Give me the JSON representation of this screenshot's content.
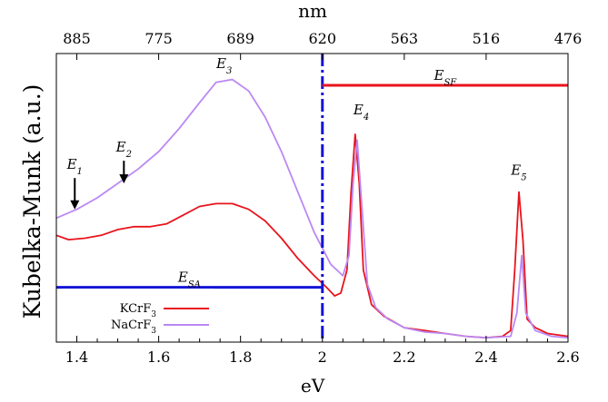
{
  "chart_data": {
    "type": "line",
    "xlabel": "eV",
    "ylabel": "Kubelka-Munk (a.u.)",
    "top_axis_label": "nm",
    "xlim": [
      1.35,
      2.6
    ],
    "ylim": [
      0,
      1
    ],
    "x_ticks": [
      "1.4",
      "1.6",
      "1.8",
      "2",
      "2.2",
      "2.4",
      "2.6"
    ],
    "top_ticks": [
      {
        "x": 1.4,
        "label": "885"
      },
      {
        "x": 1.6,
        "label": "775"
      },
      {
        "x": 1.8,
        "label": "689"
      },
      {
        "x": 2.0,
        "label": "620"
      },
      {
        "x": 2.2,
        "label": "563"
      },
      {
        "x": 2.4,
        "label": "516"
      },
      {
        "x": 2.6,
        "label": "476"
      }
    ],
    "series": [
      {
        "name": "KCrF",
        "name_sub": "3",
        "color": "#e8141c",
        "points": [
          [
            1.35,
            0.37
          ],
          [
            1.38,
            0.355
          ],
          [
            1.42,
            0.36
          ],
          [
            1.46,
            0.37
          ],
          [
            1.5,
            0.39
          ],
          [
            1.54,
            0.4
          ],
          [
            1.58,
            0.4
          ],
          [
            1.62,
            0.41
          ],
          [
            1.66,
            0.44
          ],
          [
            1.7,
            0.47
          ],
          [
            1.74,
            0.48
          ],
          [
            1.78,
            0.48
          ],
          [
            1.82,
            0.46
          ],
          [
            1.86,
            0.42
          ],
          [
            1.9,
            0.36
          ],
          [
            1.94,
            0.29
          ],
          [
            1.98,
            0.23
          ],
          [
            2.01,
            0.19
          ],
          [
            2.03,
            0.16
          ],
          [
            2.045,
            0.17
          ],
          [
            2.06,
            0.25
          ],
          [
            2.07,
            0.52
          ],
          [
            2.08,
            0.72
          ],
          [
            2.09,
            0.55
          ],
          [
            2.1,
            0.25
          ],
          [
            2.12,
            0.13
          ],
          [
            2.15,
            0.09
          ],
          [
            2.2,
            0.05
          ],
          [
            2.25,
            0.04
          ],
          [
            2.3,
            0.03
          ],
          [
            2.35,
            0.02
          ],
          [
            2.4,
            0.015
          ],
          [
            2.44,
            0.02
          ],
          [
            2.46,
            0.04
          ],
          [
            2.47,
            0.25
          ],
          [
            2.48,
            0.52
          ],
          [
            2.49,
            0.35
          ],
          [
            2.5,
            0.08
          ],
          [
            2.52,
            0.05
          ],
          [
            2.55,
            0.03
          ],
          [
            2.6,
            0.02
          ]
        ]
      },
      {
        "name": "NaCrF",
        "name_sub": "3",
        "color": "#bb88f4",
        "points": [
          [
            1.35,
            0.43
          ],
          [
            1.4,
            0.46
          ],
          [
            1.45,
            0.5
          ],
          [
            1.5,
            0.55
          ],
          [
            1.55,
            0.6
          ],
          [
            1.6,
            0.66
          ],
          [
            1.65,
            0.74
          ],
          [
            1.7,
            0.83
          ],
          [
            1.74,
            0.9
          ],
          [
            1.78,
            0.91
          ],
          [
            1.82,
            0.87
          ],
          [
            1.86,
            0.78
          ],
          [
            1.9,
            0.66
          ],
          [
            1.94,
            0.52
          ],
          [
            1.98,
            0.38
          ],
          [
            2.02,
            0.27
          ],
          [
            2.05,
            0.23
          ],
          [
            2.065,
            0.3
          ],
          [
            2.075,
            0.55
          ],
          [
            2.085,
            0.7
          ],
          [
            2.095,
            0.5
          ],
          [
            2.11,
            0.2
          ],
          [
            2.13,
            0.12
          ],
          [
            2.16,
            0.08
          ],
          [
            2.2,
            0.05
          ],
          [
            2.25,
            0.035
          ],
          [
            2.3,
            0.03
          ],
          [
            2.35,
            0.02
          ],
          [
            2.4,
            0.015
          ],
          [
            2.46,
            0.02
          ],
          [
            2.475,
            0.1
          ],
          [
            2.487,
            0.3
          ],
          [
            2.497,
            0.1
          ],
          [
            2.52,
            0.04
          ],
          [
            2.56,
            0.02
          ],
          [
            2.6,
            0.015
          ]
        ]
      }
    ],
    "reference_lines": [
      {
        "type": "vertical",
        "x": 2.0,
        "color": "#1414d8",
        "style": "dashdot"
      },
      {
        "type": "horizontal",
        "label": "E",
        "label_sub": "SA",
        "y": 0.19,
        "x_range": [
          1.35,
          2.0
        ],
        "color": "#1414d8"
      },
      {
        "type": "horizontal",
        "label": "E",
        "label_sub": "SF",
        "y": 0.89,
        "x_range": [
          2.0,
          2.6
        ],
        "color": "#e8141c"
      }
    ],
    "annotations": [
      {
        "label": "E",
        "sub": "1",
        "x": 1.395,
        "y": 0.6,
        "arrow_to_y": 0.46
      },
      {
        "label": "E",
        "sub": "2",
        "x": 1.515,
        "y": 0.66,
        "arrow_to_y": 0.55
      },
      {
        "label": "E",
        "sub": "3",
        "x": 1.76,
        "y": 0.95
      },
      {
        "label": "E",
        "sub": "4",
        "x": 2.095,
        "y": 0.79
      },
      {
        "label": "E",
        "sub": "5",
        "x": 2.48,
        "y": 0.58
      }
    ],
    "legend": {
      "position": "bottom-left"
    }
  }
}
